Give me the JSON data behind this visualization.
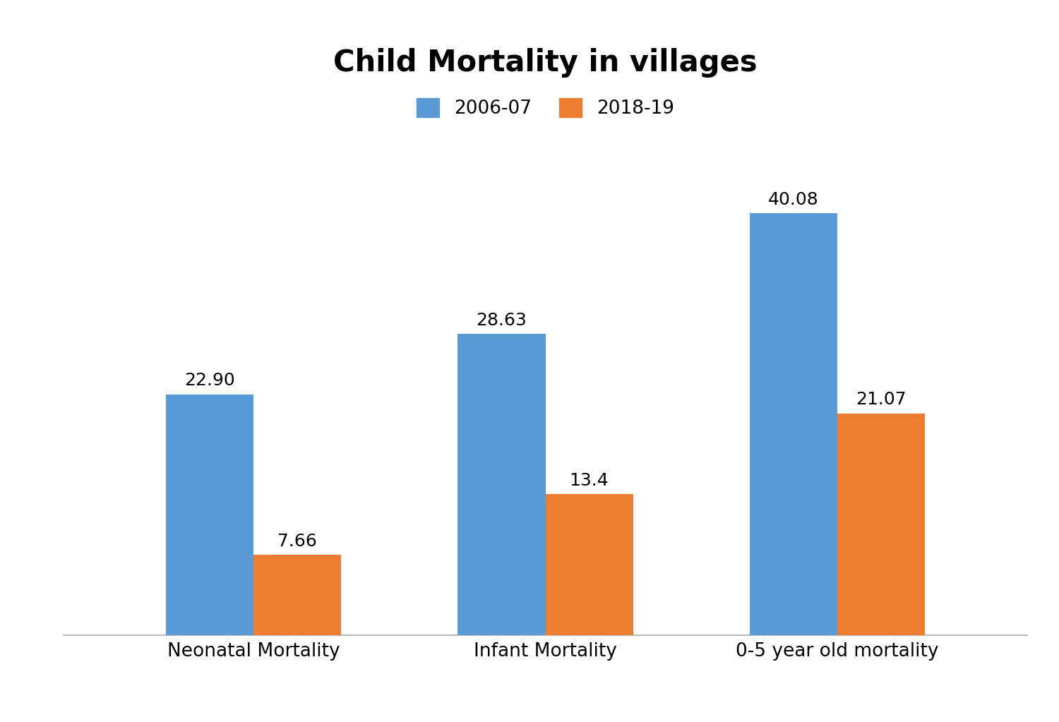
{
  "title": "Child Mortality in villages",
  "categories": [
    "Neonatal Mortality",
    "Infant Mortality",
    "0-5 year old mortality"
  ],
  "series": [
    {
      "label": "2006-07",
      "values": [
        22.9,
        28.63,
        40.08
      ],
      "color": "#5B9BD5"
    },
    {
      "label": "2018-19",
      "values": [
        7.66,
        13.4,
        21.07
      ],
      "color": "#ED7D31"
    }
  ],
  "bar_value_labels": [
    "22.90",
    "28.63",
    "40.08",
    "7.66",
    "13.4",
    "21.07"
  ],
  "title_fontsize": 30,
  "tick_fontsize": 19,
  "bar_value_fontsize": 18,
  "legend_fontsize": 19,
  "bar_width": 0.3,
  "ylim": [
    0,
    48
  ],
  "background_color": "#ffffff",
  "spine_color": "#aaaaaa"
}
